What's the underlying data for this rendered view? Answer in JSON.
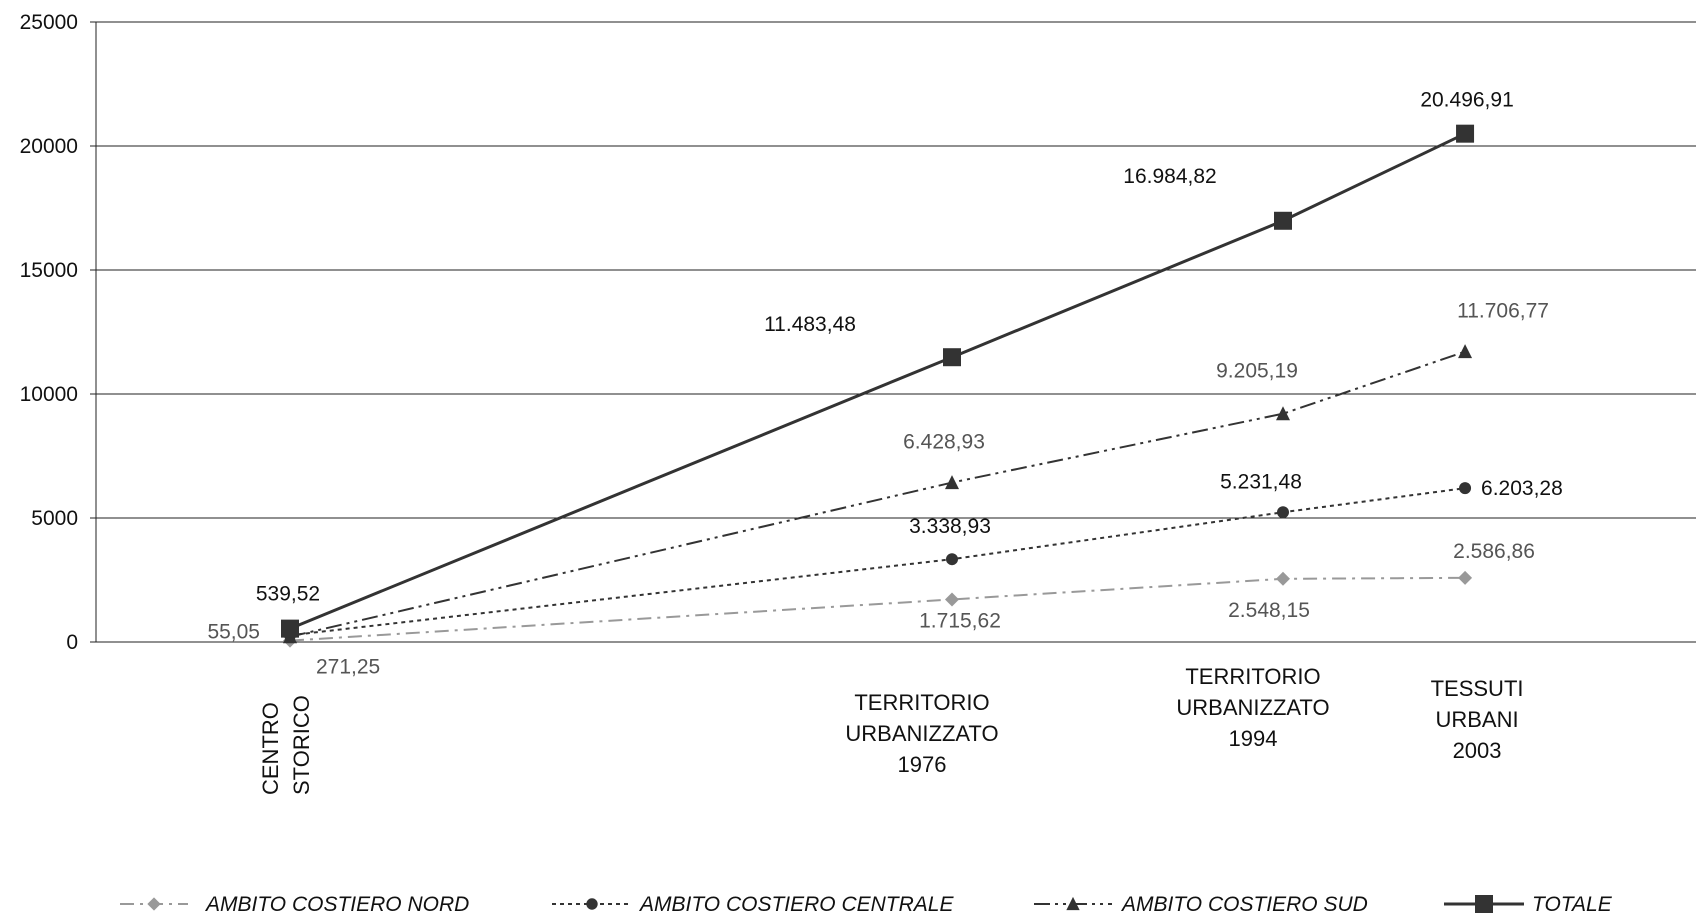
{
  "chart_data": {
    "type": "line",
    "categories": [
      [
        "CENTRO",
        "STORICO"
      ],
      [
        "TERRITORIO",
        "URBANIZZATO",
        "1976"
      ],
      [
        "TERRITORIO",
        "URBANIZZATO",
        "1994"
      ],
      [
        "TESSUTI",
        "URBANI",
        "2003"
      ]
    ],
    "x_positions": [
      0,
      2,
      3,
      3.55
    ],
    "ylim": [
      0,
      25000
    ],
    "yticks": [
      "0",
      "5000",
      "10000",
      "15000",
      "20000",
      "25000"
    ],
    "grid": true,
    "legend_position": "bottom",
    "series": [
      {
        "name": "AMBITO COSTIERO NORD",
        "values": [
          55.05,
          1715.62,
          2548.15,
          2586.86
        ],
        "labels": [
          "55,05",
          "1.715,62",
          "2.548,15",
          "2.586,86"
        ],
        "color": "#999999",
        "marker": "diamond",
        "dash": "dashdot"
      },
      {
        "name": "AMBITO COSTIERO CENTRALE",
        "values": [
          271.25,
          3338.93,
          5231.48,
          6203.28
        ],
        "labels": [
          "271,25",
          "3.338,93",
          "5.231,48",
          "6.203,28"
        ],
        "color": "#333333",
        "marker": "circle",
        "dash": "dotted"
      },
      {
        "name": "AMBITO COSTIERO SUD",
        "values": [
          213.22,
          6428.93,
          9205.19,
          11706.77
        ],
        "labels": [
          "",
          "6.428,93",
          "9.205,19",
          "11.706,77"
        ],
        "color": "#333333",
        "marker": "triangle",
        "dash": "dashdotdot"
      },
      {
        "name": "TOTALE",
        "values": [
          539.52,
          11483.48,
          16984.82,
          20496.91
        ],
        "labels": [
          "539,52",
          "11.483,48",
          "16.984,82",
          "20.496,91"
        ],
        "color": "#333333",
        "marker": "square",
        "dash": "solid"
      }
    ]
  }
}
